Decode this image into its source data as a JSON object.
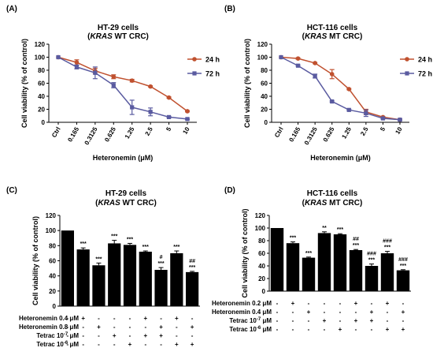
{
  "panels": {
    "a": {
      "letter": "(A)",
      "title1": "HT-29 cells",
      "title2_pre": "(",
      "title2_kras": "KRAS",
      "title2_post": " WT CRC)"
    },
    "b": {
      "letter": "(B)",
      "title1": "HCT-116 cells",
      "title2_pre": "(",
      "title2_kras": "KRAS",
      "title2_post": " MT CRC)"
    },
    "c": {
      "letter": "(C)",
      "title1": "HT-29 cells",
      "title2_pre": "(",
      "title2_kras": "KRAS",
      "title2_post": " WT CRC)"
    },
    "d": {
      "letter": "(D)",
      "title1": "HCT-116 cells",
      "title2_pre": "(",
      "title2_kras": "KRAS",
      "title2_post": " MT CRC)"
    }
  },
  "chart_data": [
    {
      "id": "a",
      "type": "line",
      "ylabel": "Cell viability (% of control)",
      "xlabel": "Heteronemin (μM)",
      "ylim": [
        0,
        120
      ],
      "yticks": [
        0,
        20,
        40,
        60,
        80,
        100,
        120
      ],
      "categories": [
        "Ctrl",
        "0.165",
        "0.3125",
        "0.625",
        "1.25",
        "2.5",
        "5",
        "10"
      ],
      "legend_position": "right",
      "series": [
        {
          "name": "24 h",
          "color": "#c0512f",
          "marker": "circle",
          "values": [
            100,
            92,
            79,
            70,
            64,
            55,
            38,
            17
          ],
          "errors": [
            0,
            4,
            4,
            3,
            2,
            1,
            1,
            1
          ]
        },
        {
          "name": "72 h",
          "color": "#5a5ba0",
          "marker": "square",
          "values": [
            100,
            85,
            76,
            57,
            23,
            16,
            8,
            5
          ],
          "errors": [
            0,
            3,
            9,
            4,
            11,
            6,
            1,
            1
          ]
        }
      ]
    },
    {
      "id": "b",
      "type": "line",
      "ylabel": "Cell viability (% of control)",
      "xlabel": "Heteronemin (μM)",
      "ylim": [
        0,
        120
      ],
      "yticks": [
        0,
        20,
        40,
        60,
        80,
        100,
        120
      ],
      "categories": [
        "Ctrl",
        "0.165",
        "0.3125",
        "0.625",
        "1.25",
        "2.5",
        "5",
        "10"
      ],
      "legend_position": "right",
      "series": [
        {
          "name": "24 h",
          "color": "#c0512f",
          "marker": "circle",
          "values": [
            100,
            98,
            91,
            74,
            51,
            16,
            8,
            4
          ],
          "errors": [
            0,
            1,
            1,
            7,
            1,
            4,
            1,
            1
          ]
        },
        {
          "name": "72 h",
          "color": "#5a5ba0",
          "marker": "square",
          "values": [
            100,
            87,
            71,
            32,
            19,
            14,
            6,
            4
          ],
          "errors": [
            0,
            1,
            3,
            1,
            1,
            5,
            1,
            1
          ]
        }
      ]
    },
    {
      "id": "c",
      "type": "bar",
      "ylabel": "Cell viability (% of control)",
      "ylim": [
        0,
        120
      ],
      "yticks": [
        0,
        20,
        40,
        60,
        80,
        100,
        120
      ],
      "values": [
        100,
        75,
        54,
        83,
        81,
        72,
        48,
        70,
        45
      ],
      "errors": [
        0,
        2,
        3,
        4,
        2,
        1,
        3,
        3,
        1
      ],
      "annotations": [
        [],
        [
          "***"
        ],
        [
          "***"
        ],
        [
          "***"
        ],
        [
          "***"
        ],
        [
          "***"
        ],
        [
          "#",
          "***"
        ],
        [
          "***"
        ],
        [
          "##",
          "***"
        ]
      ],
      "conditions": [
        {
          "label": "Heteronemin 0.4 μM",
          "marks": [
            "-",
            "+",
            "-",
            "-",
            "-",
            "+",
            "-",
            "+",
            "-"
          ]
        },
        {
          "label": "Heteronemin 0.8 μM",
          "marks": [
            "-",
            "-",
            "+",
            "-",
            "-",
            "-",
            "+",
            "-",
            "+"
          ]
        },
        {
          "label_pre": "Tetrac 10",
          "label_sup": "-7",
          "label_post": " μM",
          "marks": [
            "-",
            "-",
            "-",
            "+",
            "-",
            "+",
            "+",
            "-",
            "-"
          ]
        },
        {
          "label_pre": "Tetrac 10",
          "label_sup": "-6",
          "label_post": " μM",
          "marks": [
            "-",
            "-",
            "-",
            "-",
            "+",
            "-",
            "-",
            "+",
            "+"
          ]
        }
      ]
    },
    {
      "id": "d",
      "type": "bar",
      "ylabel": "Cell viability (% of control)",
      "ylim": [
        0,
        120
      ],
      "yticks": [
        0,
        20,
        40,
        60,
        80,
        100,
        120
      ],
      "values": [
        100,
        76,
        53,
        92,
        90,
        65,
        40,
        60,
        33
      ],
      "errors": [
        0,
        2,
        1,
        2,
        1,
        1,
        3,
        3,
        1
      ],
      "annotations": [
        [],
        [
          "***"
        ],
        [
          "***"
        ],
        [
          "**"
        ],
        [
          "***"
        ],
        [
          "##",
          "***"
        ],
        [
          "###",
          "***"
        ],
        [
          "###",
          "***"
        ],
        [
          "###",
          "***"
        ]
      ],
      "conditions": [
        {
          "label": "Heteronemin 0.2 μM",
          "marks": [
            "-",
            "+",
            "-",
            "-",
            "-",
            "+",
            "-",
            "+",
            "-"
          ]
        },
        {
          "label": "Heteronemin 0.4 μM",
          "marks": [
            "-",
            "-",
            "+",
            "-",
            "-",
            "-",
            "+",
            "-",
            "+"
          ]
        },
        {
          "label_pre": "Tetrac 10",
          "label_sup": "-7",
          "label_post": " μM",
          "marks": [
            "-",
            "-",
            "-",
            "+",
            "-",
            "+",
            "+",
            "-",
            "-"
          ]
        },
        {
          "label_pre": "Tetrac 10",
          "label_sup": "-6",
          "label_post": " μM",
          "marks": [
            "-",
            "-",
            "-",
            "-",
            "+",
            "-",
            "-",
            "+",
            "+"
          ]
        }
      ]
    }
  ]
}
